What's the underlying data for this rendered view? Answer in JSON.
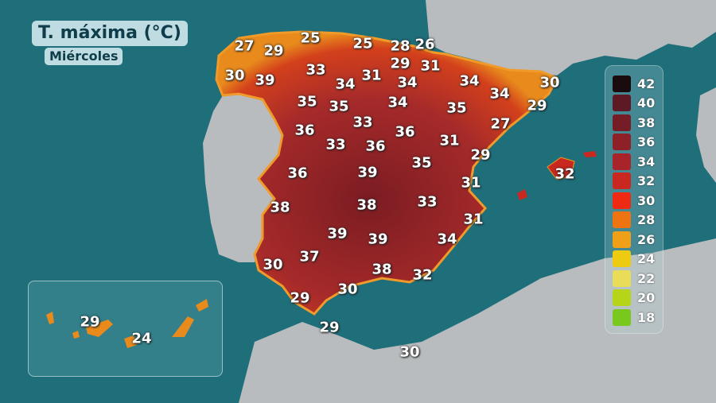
{
  "header": {
    "title": "T. máxima (°C)",
    "day": "Miércoles"
  },
  "colors": {
    "sea": "#1f6f7b",
    "land": "#b9bcbe",
    "heat": "#a62a2a"
  },
  "temperatures": [
    "27",
    "29",
    "25",
    "25",
    "28",
    "26",
    "29",
    "31",
    "30",
    "39",
    "33",
    "34",
    "31",
    "34",
    "34",
    "30",
    "34",
    "29",
    "35",
    "35",
    "34",
    "35",
    "27",
    "33",
    "36",
    "36",
    "31",
    "33",
    "36",
    "29",
    "35",
    "39",
    "36",
    "32",
    "31",
    "38",
    "38",
    "33",
    "31",
    "39",
    "39",
    "34",
    "37",
    "30",
    "38",
    "32",
    "30",
    "29",
    "29",
    "30"
  ],
  "canarias": [
    "29",
    "24"
  ],
  "legend": [
    {
      "value": "42",
      "color": "#1a0c0e"
    },
    {
      "value": "40",
      "color": "#5e1a24"
    },
    {
      "value": "38",
      "color": "#761c26"
    },
    {
      "value": "36",
      "color": "#8e2028"
    },
    {
      "value": "34",
      "color": "#a8242a"
    },
    {
      "value": "32",
      "color": "#c8281f"
    },
    {
      "value": "30",
      "color": "#ee2a12"
    },
    {
      "value": "28",
      "color": "#ee7412"
    },
    {
      "value": "26",
      "color": "#f0a018"
    },
    {
      "value": "24",
      "color": "#eccb10"
    },
    {
      "value": "22",
      "color": "#e8dc58"
    },
    {
      "value": "20",
      "color": "#b6d418"
    },
    {
      "value": "18",
      "color": "#78c81e"
    }
  ]
}
